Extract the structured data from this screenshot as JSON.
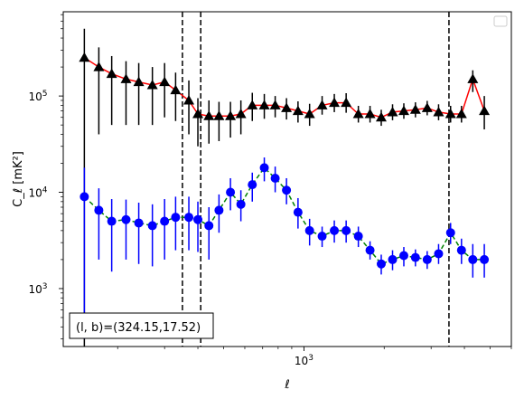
{
  "chart_data": {
    "type": "line",
    "xlabel": "ℓ",
    "ylabel": "C_ℓ  [mK²]",
    "x_scale": "log",
    "y_scale": "log",
    "xlim": [
      125,
      6000
    ],
    "ylim": [
      250,
      750000
    ],
    "x_tick_labels": [
      {
        "value": 1000,
        "label": "10",
        "exp": "3"
      }
    ],
    "y_tick_labels": [
      {
        "value": 1000,
        "label": "10",
        "exp": "3"
      },
      {
        "value": 10000,
        "label": "10",
        "exp": "4"
      },
      {
        "value": 100000,
        "label": "10",
        "exp": "5"
      }
    ],
    "vertical_lines": [
      350,
      410,
      3500
    ],
    "legend": {
      "placement": "upper right",
      "entries": []
    },
    "annotation": {
      "text": "(l, b)=(324.15,17.52)",
      "placement": "lower left"
    },
    "series": [
      {
        "marker": "triangle",
        "color": "#000000",
        "line_color": "#ff0000",
        "line_style": "solid",
        "x": [
          150,
          170,
          190,
          215,
          240,
          270,
          300,
          330,
          370,
          400,
          440,
          480,
          530,
          580,
          640,
          710,
          780,
          860,
          950,
          1050,
          1170,
          1300,
          1440,
          1600,
          1770,
          1950,
          2150,
          2370,
          2620,
          2900,
          3200,
          3550,
          3900,
          4300,
          4750
        ],
        "y": [
          250000,
          200000,
          170000,
          150000,
          140000,
          130000,
          140000,
          115000,
          90000,
          65000,
          62000,
          62000,
          62000,
          65000,
          80000,
          80000,
          80000,
          75000,
          70000,
          65000,
          80000,
          85000,
          85000,
          65000,
          65000,
          60000,
          68000,
          70000,
          72000,
          75000,
          68000,
          65000,
          65000,
          150000,
          70000
        ],
        "yerr_low": [
          400000,
          160000,
          120000,
          100000,
          90000,
          80000,
          80000,
          60000,
          50000,
          35000,
          30000,
          28000,
          25000,
          25000,
          25000,
          22000,
          20000,
          18000,
          17000,
          16000,
          16000,
          17000,
          18000,
          12000,
          12000,
          11000,
          12000,
          12000,
          12000,
          12000,
          12000,
          12000,
          12000,
          40000,
          25000
        ],
        "yerr_high": [
          250000,
          120000,
          90000,
          80000,
          80000,
          70000,
          80000,
          60000,
          55000,
          30000,
          28000,
          25000,
          25000,
          25000,
          28000,
          25000,
          20000,
          20000,
          18000,
          18000,
          20000,
          20000,
          22000,
          14000,
          14000,
          12000,
          14000,
          14000,
          14000,
          14000,
          14000,
          14000,
          14000,
          35000,
          30000
        ]
      },
      {
        "marker": "circle",
        "color": "#0000ff",
        "line_color": "#008000",
        "line_style": "dashed",
        "x": [
          150,
          170,
          190,
          215,
          240,
          270,
          300,
          330,
          370,
          400,
          440,
          480,
          530,
          580,
          640,
          710,
          780,
          860,
          950,
          1050,
          1170,
          1300,
          1440,
          1600,
          1770,
          1950,
          2150,
          2370,
          2620,
          2900,
          3200,
          3550,
          3900,
          4300,
          4750
        ],
        "y": [
          9000,
          6500,
          5000,
          5200,
          4800,
          4500,
          5000,
          5500,
          5500,
          5200,
          4500,
          6500,
          10000,
          7500,
          12000,
          18000,
          14000,
          10500,
          6200,
          4000,
          3500,
          4000,
          4000,
          3500,
          2500,
          1800,
          2000,
          2200,
          2100,
          2000,
          2300,
          3800,
          2500,
          2000,
          2000
        ],
        "yerr_low": [
          8700,
          4500,
          3500,
          3200,
          3000,
          2800,
          3000,
          3000,
          3000,
          2800,
          2500,
          2700,
          3500,
          2500,
          4000,
          5000,
          4000,
          3000,
          2000,
          1200,
          800,
          1000,
          1000,
          800,
          500,
          400,
          450,
          500,
          400,
          400,
          500,
          900,
          700,
          700,
          700
        ],
        "yerr_high": [
          9000,
          4500,
          3500,
          3200,
          3000,
          3000,
          3500,
          3500,
          3500,
          2800,
          2500,
          3000,
          4000,
          3000,
          4000,
          5000,
          4500,
          3500,
          2500,
          1300,
          900,
          1100,
          1100,
          900,
          600,
          450,
          500,
          500,
          450,
          450,
          600,
          1000,
          800,
          900,
          900
        ]
      }
    ]
  }
}
